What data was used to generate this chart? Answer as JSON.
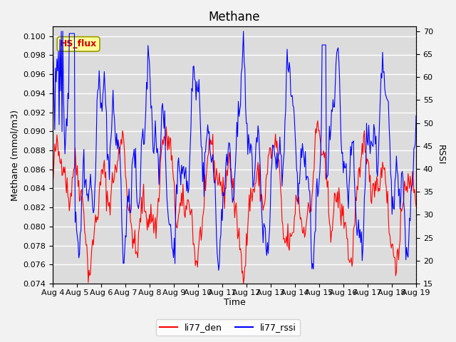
{
  "title": "Methane",
  "xlabel": "Time",
  "ylabel_left": "Methane (mmol/m3)",
  "ylabel_right": "RSSI",
  "ylim_left": [
    0.074,
    0.101
  ],
  "ylim_right": [
    15,
    71
  ],
  "yticks_left": [
    0.074,
    0.076,
    0.078,
    0.08,
    0.082,
    0.084,
    0.086,
    0.088,
    0.09,
    0.092,
    0.094,
    0.096,
    0.098,
    0.1
  ],
  "yticks_right": [
    15,
    20,
    25,
    30,
    35,
    40,
    45,
    50,
    55,
    60,
    65,
    70
  ],
  "xtick_labels": [
    "Aug 4",
    "Aug 5",
    "Aug 6",
    "Aug 7",
    "Aug 8",
    "Aug 9",
    "Aug 10",
    "Aug 11",
    "Aug 12",
    "Aug 13",
    "Aug 14",
    "Aug 15",
    "Aug 16",
    "Aug 17",
    "Aug 18",
    "Aug 19"
  ],
  "legend_label_red": "li77_den",
  "legend_label_blue": "li77_rssi",
  "annotation_text": "HS_flux",
  "color_red": "#ff0000",
  "color_blue": "#0000ff",
  "fig_bg_color": "#f2f2f2",
  "plot_bg_color": "#dcdcdc",
  "grid_color": "#ffffff",
  "title_fontsize": 12,
  "axis_fontsize": 9,
  "tick_fontsize": 8,
  "legend_fontsize": 9,
  "n_points": 500,
  "seed": 42
}
